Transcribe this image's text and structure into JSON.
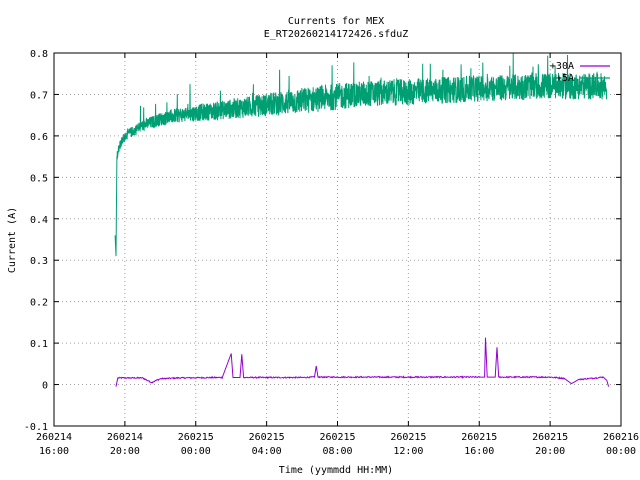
{
  "chart_data": {
    "type": "line",
    "title": "Currents for MEX",
    "subtitle": "E_RT20260214172426.sfduZ",
    "xlabel": "Time (yymmdd HH:MM)",
    "ylabel": "Current (A)",
    "ylim": [
      -0.1,
      0.8
    ],
    "yticks": [
      "-0.1",
      "0",
      "0.1",
      "0.2",
      "0.3",
      "0.4",
      "0.5",
      "0.6",
      "0.7",
      "0.8"
    ],
    "xlim_hours": [
      16,
      48
    ],
    "xticks": [
      {
        "date": "260214",
        "time": "16:00"
      },
      {
        "date": "260214",
        "time": "20:00"
      },
      {
        "date": "260215",
        "time": "00:00"
      },
      {
        "date": "260215",
        "time": "04:00"
      },
      {
        "date": "260215",
        "time": "08:00"
      },
      {
        "date": "260215",
        "time": "12:00"
      },
      {
        "date": "260215",
        "time": "16:00"
      },
      {
        "date": "260215",
        "time": "20:00"
      },
      {
        "date": "260216",
        "time": "00:00"
      }
    ],
    "grid": true,
    "legend_position": "top-right",
    "series": [
      {
        "name": "+30A",
        "color": "#9400d3",
        "points": [
          [
            19.5,
            -0.005
          ],
          [
            19.6,
            0.016
          ],
          [
            21.0,
            0.016
          ],
          [
            21.5,
            0.005
          ],
          [
            22.0,
            0.014
          ],
          [
            23.0,
            0.016
          ],
          [
            25.5,
            0.017
          ],
          [
            26.0,
            0.075
          ],
          [
            26.1,
            0.017
          ],
          [
            26.5,
            0.017
          ],
          [
            26.6,
            0.073
          ],
          [
            26.7,
            0.017
          ],
          [
            30.0,
            0.017
          ],
          [
            30.7,
            0.018
          ],
          [
            30.8,
            0.045
          ],
          [
            30.9,
            0.018
          ],
          [
            36.0,
            0.018
          ],
          [
            40.0,
            0.018
          ],
          [
            40.3,
            0.018
          ],
          [
            40.35,
            0.113
          ],
          [
            40.45,
            0.018
          ],
          [
            40.9,
            0.018
          ],
          [
            41.0,
            0.09
          ],
          [
            41.1,
            0.018
          ],
          [
            44.0,
            0.018
          ],
          [
            44.8,
            0.015
          ],
          [
            45.2,
            0.002
          ],
          [
            45.6,
            0.012
          ],
          [
            47.0,
            0.018
          ],
          [
            47.2,
            0.01
          ],
          [
            47.3,
            -0.005
          ]
        ]
      },
      {
        "name": "+5A",
        "color": "#009e73",
        "points": [
          [
            19.45,
            0.36
          ],
          [
            19.5,
            0.31
          ],
          [
            19.55,
            0.55
          ],
          [
            19.7,
            0.575
          ],
          [
            20.0,
            0.6
          ],
          [
            21.0,
            0.625
          ],
          [
            22.0,
            0.64
          ],
          [
            23.0,
            0.65
          ],
          [
            24.0,
            0.655
          ],
          [
            25.0,
            0.66
          ],
          [
            26.0,
            0.665
          ],
          [
            27.0,
            0.67
          ],
          [
            28.0,
            0.675
          ],
          [
            29.0,
            0.68
          ],
          [
            30.0,
            0.685
          ],
          [
            31.0,
            0.69
          ],
          [
            32.0,
            0.695
          ],
          [
            33.0,
            0.7
          ],
          [
            34.0,
            0.702
          ],
          [
            35.0,
            0.705
          ],
          [
            36.0,
            0.705
          ],
          [
            37.0,
            0.708
          ],
          [
            38.0,
            0.71
          ],
          [
            39.0,
            0.712
          ],
          [
            40.0,
            0.715
          ],
          [
            41.0,
            0.715
          ],
          [
            42.0,
            0.717
          ],
          [
            43.0,
            0.72
          ],
          [
            44.0,
            0.72
          ],
          [
            45.0,
            0.72
          ],
          [
            46.0,
            0.72
          ],
          [
            47.0,
            0.72
          ],
          [
            47.2,
            0.715
          ]
        ]
      }
    ]
  }
}
